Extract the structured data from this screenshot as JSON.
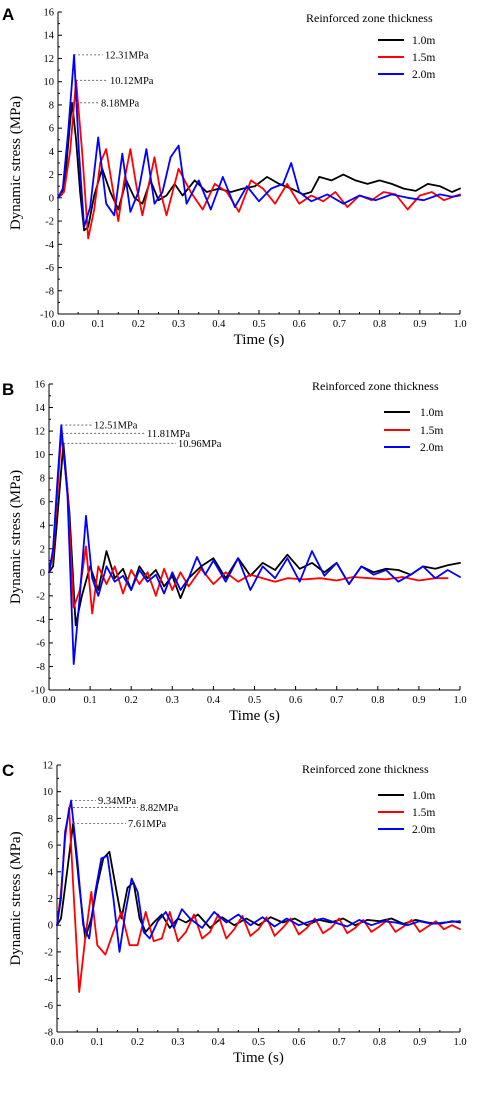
{
  "chart_data": [
    {
      "type": "line",
      "panel_label": "A",
      "xlabel": "Time (s)",
      "ylabel": "Dynamic stress (MPa)",
      "xlim": [
        0.0,
        1.0
      ],
      "ylim": [
        -10,
        16
      ],
      "xticks": [
        "0.0",
        "0.1",
        "0.2",
        "0.3",
        "0.4",
        "0.5",
        "0.6",
        "0.7",
        "0.8",
        "0.9",
        "1.0"
      ],
      "yticks": [
        "-10",
        "-8",
        "-6",
        "-4",
        "-2",
        "0",
        "2",
        "4",
        "6",
        "8",
        "10",
        "12",
        "14",
        "16"
      ],
      "legend_title": "Reinforced zone thickness",
      "legend_position": "top-right",
      "annotations": [
        {
          "text": "12.31MPa",
          "x": 0.04,
          "y": 12.31
        },
        {
          "text": "10.12MPa",
          "x": 0.045,
          "y": 10.12
        },
        {
          "text": "8.18MPa",
          "x": 0.035,
          "y": 8.18
        }
      ],
      "series": [
        {
          "name": "1.0m",
          "color": "#000000",
          "x": [
            0,
            0.01,
            0.02,
            0.03,
            0.035,
            0.045,
            0.055,
            0.065,
            0.075,
            0.09,
            0.11,
            0.13,
            0.15,
            0.17,
            0.19,
            0.21,
            0.23,
            0.25,
            0.27,
            0.29,
            0.31,
            0.34,
            0.37,
            0.4,
            0.43,
            0.46,
            0.49,
            0.52,
            0.55,
            0.58,
            0.61,
            0.63,
            0.65,
            0.68,
            0.71,
            0.74,
            0.77,
            0.8,
            0.83,
            0.86,
            0.89,
            0.92,
            0.95,
            0.98,
            1.0
          ],
          "y": [
            0,
            0.3,
            2.5,
            6.5,
            8.18,
            5.0,
            0.5,
            -2.8,
            -2.5,
            0.2,
            2.5,
            0.5,
            -1.0,
            1.5,
            0.0,
            -0.5,
            1.5,
            -0.2,
            0.2,
            1.2,
            0.2,
            1.5,
            0.5,
            0.8,
            0.5,
            0.8,
            1.0,
            1.8,
            1.2,
            0.8,
            0.3,
            0.5,
            1.8,
            1.5,
            2.0,
            1.5,
            1.2,
            1.5,
            1.2,
            0.8,
            0.6,
            1.2,
            1.0,
            0.5,
            0.8
          ]
        },
        {
          "name": "1.5m",
          "color": "#ff0000",
          "x": [
            0,
            0.015,
            0.03,
            0.045,
            0.06,
            0.075,
            0.09,
            0.105,
            0.12,
            0.135,
            0.15,
            0.165,
            0.18,
            0.195,
            0.21,
            0.225,
            0.24,
            0.255,
            0.27,
            0.285,
            0.3,
            0.33,
            0.36,
            0.39,
            0.42,
            0.45,
            0.48,
            0.51,
            0.54,
            0.57,
            0.6,
            0.63,
            0.66,
            0.69,
            0.72,
            0.75,
            0.78,
            0.81,
            0.84,
            0.87,
            0.9,
            0.93,
            0.96,
            1.0
          ],
          "y": [
            0,
            0.5,
            4.0,
            10.12,
            4.0,
            -3.5,
            -1.0,
            3.0,
            4.2,
            1.0,
            -2.0,
            1.5,
            4.2,
            1.0,
            -1.5,
            1.0,
            3.5,
            0.5,
            -1.5,
            0.5,
            2.5,
            0.5,
            -1.0,
            1.2,
            0.5,
            -1.2,
            1.5,
            0.8,
            -0.5,
            1.2,
            -0.5,
            0.2,
            -0.3,
            0.5,
            -0.8,
            0.2,
            -0.2,
            0.5,
            0.3,
            -1.0,
            0.2,
            0.5,
            -0.2,
            0.3
          ]
        },
        {
          "name": "2.0m",
          "color": "#0000ff",
          "x": [
            0,
            0.012,
            0.025,
            0.04,
            0.052,
            0.065,
            0.08,
            0.1,
            0.12,
            0.14,
            0.16,
            0.18,
            0.2,
            0.22,
            0.24,
            0.26,
            0.28,
            0.3,
            0.32,
            0.35,
            0.38,
            0.41,
            0.44,
            0.47,
            0.5,
            0.53,
            0.56,
            0.58,
            0.6,
            0.63,
            0.67,
            0.71,
            0.75,
            0.79,
            0.83,
            0.87,
            0.91,
            0.95,
            0.98,
            1.0
          ],
          "y": [
            0,
            0.8,
            5.5,
            12.31,
            4.0,
            -2.5,
            -0.8,
            5.2,
            -0.5,
            -1.5,
            3.8,
            -1.2,
            0.5,
            4.2,
            -0.5,
            0.5,
            3.5,
            4.5,
            -0.5,
            1.5,
            -1.0,
            1.8,
            -0.8,
            1.0,
            -0.3,
            0.8,
            1.2,
            3.0,
            0.5,
            -0.3,
            0.3,
            -0.5,
            0.2,
            -0.2,
            0.3,
            0.0,
            -0.2,
            0.3,
            0.1,
            0.2
          ]
        }
      ]
    },
    {
      "type": "line",
      "panel_label": "B",
      "xlabel": "Time (s)",
      "ylabel": "Dynamic stress (MPa)",
      "xlim": [
        0.0,
        1.0
      ],
      "ylim": [
        -10,
        16
      ],
      "xticks": [
        "0.0",
        "0.1",
        "0.2",
        "0.3",
        "0.4",
        "0.5",
        "0.6",
        "0.7",
        "0.8",
        "0.9",
        "1.0"
      ],
      "yticks": [
        "-10",
        "-8",
        "-6",
        "-4",
        "-2",
        "0",
        "2",
        "4",
        "6",
        "8",
        "10",
        "12",
        "14",
        "16"
      ],
      "legend_title": "Reinforced zone thickness",
      "legend_position": "top-right",
      "annotations": [
        {
          "text": "12.51MPa",
          "x": 0.03,
          "y": 12.51
        },
        {
          "text": "11.81MPa",
          "x": 0.032,
          "y": 11.81
        },
        {
          "text": "10.96MPa",
          "x": 0.035,
          "y": 10.96
        }
      ],
      "series": [
        {
          "name": "1.0m",
          "color": "#000000",
          "x": [
            0,
            0.01,
            0.02,
            0.035,
            0.05,
            0.065,
            0.08,
            0.1,
            0.12,
            0.14,
            0.16,
            0.18,
            0.2,
            0.22,
            0.24,
            0.26,
            0.28,
            0.3,
            0.32,
            0.34,
            0.37,
            0.4,
            0.43,
            0.46,
            0.49,
            0.52,
            0.55,
            0.58,
            0.61,
            0.64,
            0.67,
            0.7,
            0.73,
            0.76,
            0.79,
            0.82,
            0.85,
            0.88,
            0.91,
            0.94,
            0.97,
            1.0
          ],
          "y": [
            0,
            0.5,
            4.5,
            10.96,
            5.0,
            -4.5,
            -2.0,
            0.5,
            -1.5,
            1.8,
            -0.5,
            0.3,
            -1.5,
            0.5,
            -0.5,
            0.2,
            -1.2,
            -0.3,
            -2.2,
            -0.5,
            0.5,
            1.2,
            -0.5,
            1.2,
            -0.3,
            0.8,
            0.2,
            1.5,
            0.3,
            0.8,
            0.0,
            0.8,
            -1.0,
            0.5,
            0.0,
            0.3,
            0.2,
            -0.2,
            0.5,
            0.3,
            0.6,
            0.8
          ]
        },
        {
          "name": "1.5m",
          "color": "#ff0000",
          "x": [
            0,
            0.01,
            0.02,
            0.03,
            0.045,
            0.06,
            0.075,
            0.09,
            0.105,
            0.12,
            0.14,
            0.16,
            0.18,
            0.2,
            0.22,
            0.24,
            0.26,
            0.28,
            0.3,
            0.32,
            0.34,
            0.37,
            0.4,
            0.43,
            0.46,
            0.49,
            0.52,
            0.55,
            0.58,
            0.62,
            0.66,
            0.7,
            0.74,
            0.78,
            0.82,
            0.86,
            0.9,
            0.94,
            0.97
          ],
          "y": [
            0,
            1.5,
            6.5,
            11.81,
            7.0,
            -3.0,
            -1.5,
            2.2,
            -3.5,
            0.5,
            -1.0,
            0.5,
            -1.8,
            0.2,
            -1.0,
            0.0,
            -2.0,
            0.3,
            -1.5,
            0.0,
            -1.2,
            0.3,
            -1.0,
            0.0,
            -0.8,
            -0.2,
            -0.5,
            -0.8,
            -0.5,
            -0.6,
            -0.5,
            -0.7,
            -0.4,
            -0.5,
            -0.6,
            -0.4,
            -0.7,
            -0.5,
            -0.5
          ]
        },
        {
          "name": "2.0m",
          "color": "#0000ff",
          "x": [
            0,
            0.01,
            0.02,
            0.03,
            0.045,
            0.06,
            0.075,
            0.09,
            0.105,
            0.12,
            0.14,
            0.16,
            0.18,
            0.2,
            0.22,
            0.24,
            0.26,
            0.28,
            0.3,
            0.32,
            0.34,
            0.36,
            0.38,
            0.4,
            0.43,
            0.46,
            0.49,
            0.52,
            0.55,
            0.58,
            0.61,
            0.64,
            0.67,
            0.7,
            0.73,
            0.76,
            0.79,
            0.82,
            0.85,
            0.88,
            0.91,
            0.94,
            0.97,
            1.0
          ],
          "y": [
            0,
            2.0,
            7.5,
            12.51,
            6.5,
            -7.8,
            -2.0,
            4.8,
            -0.5,
            -2.0,
            0.5,
            -0.8,
            -0.3,
            -1.5,
            0.2,
            -0.8,
            -0.2,
            -1.8,
            0.0,
            -1.5,
            -0.5,
            1.3,
            -0.2,
            1.0,
            -0.8,
            1.2,
            -1.5,
            0.5,
            -0.5,
            1.2,
            -0.8,
            1.8,
            -0.3,
            0.8,
            -1.0,
            0.5,
            -0.2,
            0.2,
            -0.8,
            -0.2,
            0.5,
            -0.5,
            0.2,
            -0.4
          ]
        }
      ]
    },
    {
      "type": "line",
      "panel_label": "C",
      "xlabel": "Time (s)",
      "ylabel": "Dynamic stress (MPa)",
      "xlim": [
        0.0,
        1.0
      ],
      "ylim": [
        -8,
        12
      ],
      "xticks": [
        "0.0",
        "0.1",
        "0.2",
        "0.3",
        "0.4",
        "0.5",
        "0.6",
        "0.7",
        "0.8",
        "0.9",
        "1.0"
      ],
      "yticks": [
        "-8",
        "-6",
        "-4",
        "-2",
        "0",
        "2",
        "4",
        "6",
        "8",
        "10",
        "12"
      ],
      "legend_title": "Reinforced zone thickness",
      "legend_position": "top-right",
      "annotations": [
        {
          "text": "9.34MPa",
          "x": 0.035,
          "y": 9.34
        },
        {
          "text": "8.82MPa",
          "x": 0.03,
          "y": 8.82
        },
        {
          "text": "7.61MPa",
          "x": 0.04,
          "y": 7.61
        }
      ],
      "series": [
        {
          "name": "1.0m",
          "color": "#000000",
          "x": [
            0,
            0.01,
            0.025,
            0.04,
            0.055,
            0.07,
            0.085,
            0.1,
            0.115,
            0.13,
            0.145,
            0.16,
            0.175,
            0.19,
            0.205,
            0.22,
            0.24,
            0.26,
            0.28,
            0.3,
            0.32,
            0.35,
            0.38,
            0.41,
            0.44,
            0.47,
            0.5,
            0.53,
            0.56,
            0.59,
            0.62,
            0.65,
            0.68,
            0.71,
            0.74,
            0.77,
            0.8,
            0.83,
            0.86,
            0.89,
            0.92,
            0.95,
            0.98,
            1.0
          ],
          "y": [
            0,
            0.5,
            4.0,
            7.61,
            3.0,
            -1.0,
            0.5,
            3.0,
            5.0,
            5.5,
            3.0,
            0.5,
            2.8,
            3.2,
            0.5,
            -0.5,
            0.2,
            0.8,
            -0.2,
            0.5,
            0.2,
            0.8,
            -0.2,
            0.6,
            0.0,
            0.5,
            0.0,
            0.6,
            0.2,
            0.5,
            0.0,
            0.4,
            0.2,
            0.5,
            0.0,
            0.4,
            0.3,
            0.5,
            0.1,
            0.4,
            0.2,
            0.1,
            0.3,
            0.2
          ]
        },
        {
          "name": "1.5m",
          "color": "#ff0000",
          "x": [
            0,
            0.01,
            0.02,
            0.03,
            0.042,
            0.055,
            0.07,
            0.085,
            0.1,
            0.12,
            0.14,
            0.16,
            0.18,
            0.2,
            0.22,
            0.24,
            0.26,
            0.28,
            0.3,
            0.32,
            0.34,
            0.36,
            0.38,
            0.4,
            0.42,
            0.44,
            0.46,
            0.48,
            0.5,
            0.52,
            0.54,
            0.56,
            0.58,
            0.6,
            0.62,
            0.64,
            0.66,
            0.68,
            0.7,
            0.72,
            0.74,
            0.76,
            0.78,
            0.8,
            0.82,
            0.84,
            0.86,
            0.88,
            0.9,
            0.92,
            0.94,
            0.96,
            0.98,
            1.0
          ],
          "y": [
            0,
            2.5,
            6.5,
            8.82,
            2.0,
            -5.0,
            -1.0,
            2.5,
            -1.5,
            -2.2,
            -0.5,
            1.0,
            -1.5,
            -1.5,
            1.0,
            -1.2,
            -1.0,
            1.0,
            -1.2,
            -0.5,
            0.8,
            -1.0,
            -0.5,
            0.8,
            -1.0,
            -0.3,
            0.7,
            -0.8,
            -0.3,
            0.6,
            -0.8,
            -0.2,
            0.5,
            -0.7,
            -0.2,
            0.5,
            -0.6,
            -0.2,
            0.5,
            -0.6,
            -0.2,
            0.4,
            -0.5,
            -0.1,
            0.4,
            -0.5,
            -0.1,
            0.4,
            -0.5,
            -0.1,
            0.3,
            -0.3,
            0.0,
            -0.3
          ]
        },
        {
          "name": "2.0m",
          "color": "#0000ff",
          "x": [
            0,
            0.01,
            0.02,
            0.035,
            0.05,
            0.065,
            0.08,
            0.095,
            0.11,
            0.125,
            0.14,
            0.155,
            0.17,
            0.185,
            0.2,
            0.215,
            0.23,
            0.25,
            0.27,
            0.29,
            0.31,
            0.33,
            0.36,
            0.39,
            0.42,
            0.45,
            0.48,
            0.51,
            0.54,
            0.57,
            0.6,
            0.63,
            0.66,
            0.69,
            0.72,
            0.75,
            0.78,
            0.81,
            0.84,
            0.87,
            0.9,
            0.93,
            0.96,
            1.0
          ],
          "y": [
            0,
            2.0,
            7.0,
            9.34,
            5.0,
            0.0,
            -1.0,
            2.5,
            5.0,
            5.2,
            2.0,
            -2.0,
            1.0,
            3.5,
            2.5,
            -0.5,
            -1.0,
            0.3,
            1.0,
            -0.2,
            1.2,
            0.5,
            -0.2,
            1.0,
            0.2,
            0.8,
            0.0,
            0.6,
            -0.1,
            0.5,
            0.0,
            0.3,
            0.5,
            0.2,
            -0.1,
            0.4,
            0.0,
            0.3,
            0.2,
            0.0,
            0.3,
            0.1,
            0.2,
            0.3
          ]
        }
      ]
    }
  ]
}
